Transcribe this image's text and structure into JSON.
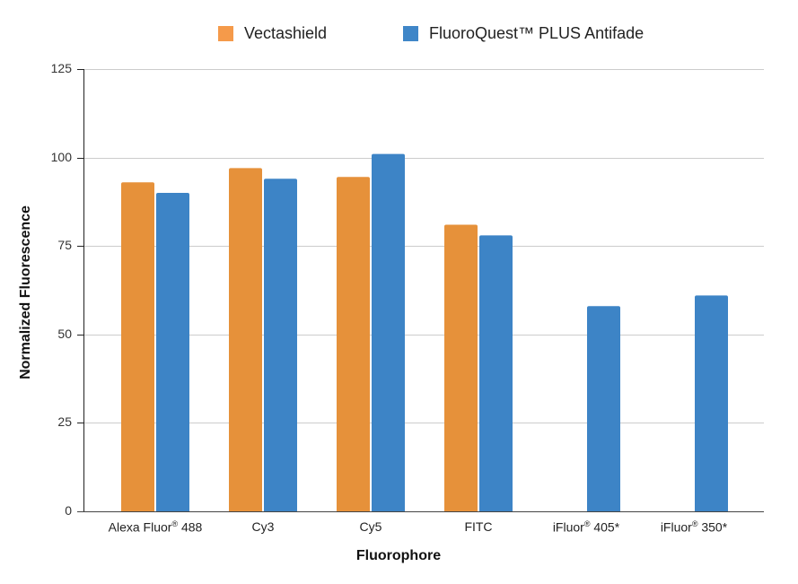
{
  "chart_data": {
    "type": "bar",
    "title": "",
    "xlabel": "Fluorophore",
    "ylabel": "Normalized Fluorescence",
    "ylim": [
      0,
      125
    ],
    "yticks": [
      0,
      25,
      50,
      75,
      100,
      125
    ],
    "grid": true,
    "legend_position": "top",
    "categories": [
      "Alexa Fluor® 488",
      "Cy3",
      "Cy5",
      "FITC",
      "iFluor® 405*",
      "iFluor® 350*"
    ],
    "series": [
      {
        "name": "Vectashield",
        "color": "#e6913a",
        "values": [
          93,
          97,
          94.5,
          81,
          null,
          null
        ]
      },
      {
        "name": "FluoroQuest™ PLUS Antifade",
        "color": "#3d84c6",
        "values": [
          90,
          94,
          101,
          78,
          58,
          61
        ]
      }
    ]
  },
  "legend": {
    "items": [
      {
        "label": "Vectashield",
        "color": "#f59a4a"
      },
      {
        "label": "FluoroQuest™ PLUS Antifade",
        "color": "#3f86c8"
      }
    ]
  },
  "axes": {
    "x_title": "Fluorophore",
    "y_title": "Normalized Fluorescence",
    "y_tick_labels": [
      "0",
      "25",
      "50",
      "75",
      "100",
      "125"
    ],
    "x_tick_labels": [
      {
        "base": "Alexa Fluor",
        "sup": "®",
        "suffix": " 488"
      },
      {
        "base": "Cy3",
        "sup": "",
        "suffix": ""
      },
      {
        "base": "Cy5",
        "sup": "",
        "suffix": ""
      },
      {
        "base": "FITC",
        "sup": "",
        "suffix": ""
      },
      {
        "base": "iFluor",
        "sup": "®",
        "suffix": " 405*"
      },
      {
        "base": "iFluor",
        "sup": "®",
        "suffix": " 350*"
      }
    ]
  }
}
